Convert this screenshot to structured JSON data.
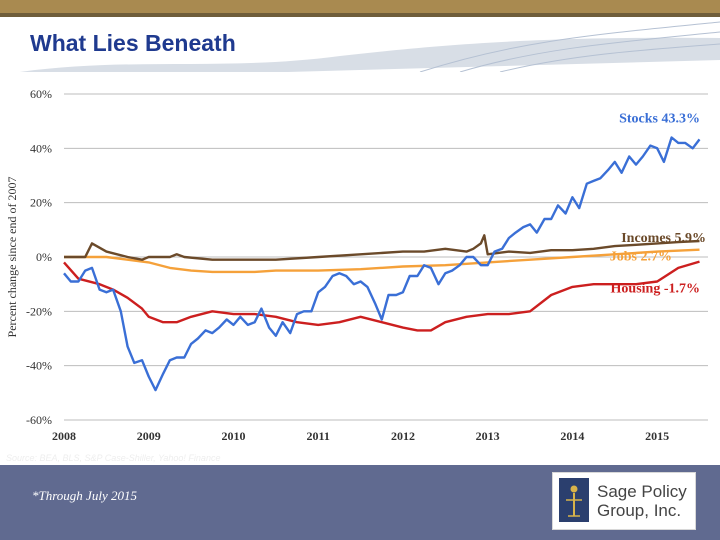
{
  "title": "What Lies Beneath",
  "source": "Source: BEA, BLS, S&P Case-Shiller, Yahoo! Finance",
  "footnote": "*Through July 2015",
  "logo": {
    "line1": "Sage Policy",
    "line2": "Group, Inc."
  },
  "colors": {
    "title": "#1f3a8f",
    "stocks": "#3a6fd6",
    "incomes": "#6b4a2a",
    "jobs": "#f5a13a",
    "housing": "#cc1f1f",
    "band": "#606a90"
  },
  "chart_data": {
    "type": "line",
    "title": "What Lies Beneath",
    "ylabel": "Percent change since end of 2007",
    "xlabel": "",
    "ylim": [
      -60,
      60
    ],
    "yticks": [
      60,
      40,
      20,
      0,
      -20,
      -40,
      -60
    ],
    "ytick_labels": [
      "60%",
      "40%",
      "20%",
      "0%",
      "-20%",
      "-40%",
      "-60%"
    ],
    "xticks": [
      2008,
      2009,
      2010,
      2011,
      2012,
      2013,
      2014,
      2015
    ],
    "xtick_labels": [
      "2008",
      "2009",
      "2010",
      "2011",
      "2012",
      "2013",
      "2014",
      "2015"
    ],
    "xlim": [
      2008,
      2015.6
    ],
    "grid": "horizontal",
    "series": [
      {
        "name": "Stocks",
        "label": "Stocks 43.3%",
        "color": "#3a6fd6",
        "x": [
          2008,
          2008.08,
          2008.17,
          2008.25,
          2008.33,
          2008.42,
          2008.5,
          2008.58,
          2008.67,
          2008.75,
          2008.83,
          2008.92,
          2009,
          2009.08,
          2009.17,
          2009.25,
          2009.33,
          2009.42,
          2009.5,
          2009.58,
          2009.67,
          2009.75,
          2009.83,
          2009.92,
          2010,
          2010.08,
          2010.17,
          2010.25,
          2010.33,
          2010.42,
          2010.5,
          2010.58,
          2010.67,
          2010.75,
          2010.83,
          2010.92,
          2011,
          2011.08,
          2011.17,
          2011.25,
          2011.33,
          2011.42,
          2011.5,
          2011.58,
          2011.67,
          2011.75,
          2011.83,
          2011.92,
          2012,
          2012.08,
          2012.17,
          2012.25,
          2012.33,
          2012.42,
          2012.5,
          2012.58,
          2012.67,
          2012.75,
          2012.83,
          2012.92,
          2013,
          2013.08,
          2013.17,
          2013.25,
          2013.33,
          2013.42,
          2013.5,
          2013.58,
          2013.67,
          2013.75,
          2013.83,
          2013.92,
          2014,
          2014.08,
          2014.17,
          2014.25,
          2014.33,
          2014.42,
          2014.5,
          2014.58,
          2014.67,
          2014.75,
          2014.83,
          2014.92,
          2015,
          2015.08,
          2015.17,
          2015.25,
          2015.33,
          2015.42,
          2015.5
        ],
        "values": [
          -6,
          -9,
          -9,
          -5,
          -4,
          -12,
          -13,
          -12,
          -20,
          -33,
          -39,
          -38,
          -44,
          -49,
          -43,
          -38,
          -37,
          -37,
          -32,
          -30,
          -27,
          -28,
          -26,
          -23,
          -25,
          -22,
          -25,
          -24,
          -19,
          -26,
          -29,
          -24,
          -28,
          -21,
          -20,
          -20,
          -13,
          -11,
          -7,
          -6,
          -7,
          -10,
          -9,
          -11,
          -17,
          -23,
          -14,
          -14,
          -13,
          -7,
          -7,
          -3,
          -4,
          -10,
          -6,
          -5,
          -3,
          0,
          0,
          -3,
          -3,
          2,
          3,
          7,
          9,
          11,
          12,
          9,
          14,
          14,
          19,
          16,
          22,
          18,
          27,
          28,
          29,
          32,
          35,
          31,
          37,
          34,
          37,
          41,
          40,
          35,
          44,
          42,
          42,
          40,
          43.3
        ]
      },
      {
        "name": "Incomes",
        "label": "Incomes 5.9%",
        "color": "#6b4a2a",
        "x": [
          2008,
          2008.25,
          2008.33,
          2008.5,
          2008.75,
          2008.92,
          2009,
          2009.25,
          2009.33,
          2009.42,
          2009.75,
          2010,
          2010.5,
          2011,
          2011.5,
          2012,
          2012.25,
          2012.5,
          2012.75,
          2012.83,
          2012.92,
          2012.96,
          2013,
          2013.25,
          2013.5,
          2013.75,
          2014,
          2014.25,
          2014.5,
          2014.75,
          2015,
          2015.25,
          2015.5
        ],
        "values": [
          0,
          0,
          5,
          2,
          0,
          -1,
          0,
          0,
          1,
          0,
          -1,
          -1,
          -1,
          0,
          1,
          2,
          2,
          3,
          2,
          3,
          5,
          8,
          1,
          2,
          1.5,
          2.5,
          2.5,
          3,
          4,
          4.5,
          5,
          5.5,
          5.9
        ]
      },
      {
        "name": "Jobs",
        "label": "Jobs 2.7%",
        "color": "#f5a13a",
        "x": [
          2008,
          2008.25,
          2008.5,
          2008.75,
          2009,
          2009.25,
          2009.5,
          2009.75,
          2010,
          2010.25,
          2010.5,
          2011,
          2011.5,
          2012,
          2012.5,
          2013,
          2013.5,
          2014,
          2014.5,
          2015,
          2015.5
        ],
        "values": [
          0,
          0,
          0,
          -1,
          -2,
          -4,
          -5,
          -5.5,
          -5.5,
          -5.5,
          -5,
          -5,
          -4.5,
          -3.5,
          -3,
          -2,
          -1,
          0,
          1,
          2,
          2.7
        ]
      },
      {
        "name": "Housing",
        "label": "Housing -1.7%",
        "color": "#cc1f1f",
        "x": [
          2008,
          2008.17,
          2008.42,
          2008.58,
          2008.75,
          2008.92,
          2009,
          2009.17,
          2009.33,
          2009.5,
          2009.75,
          2010,
          2010.25,
          2010.5,
          2010.75,
          2011,
          2011.25,
          2011.5,
          2011.75,
          2012,
          2012.17,
          2012.33,
          2012.5,
          2012.75,
          2013,
          2013.25,
          2013.5,
          2013.75,
          2014,
          2014.25,
          2014.5,
          2014.75,
          2015,
          2015.25,
          2015.5
        ],
        "values": [
          -2,
          -8,
          -10,
          -12,
          -15,
          -19,
          -22,
          -24,
          -24,
          -22,
          -20,
          -21,
          -21,
          -22,
          -24,
          -25,
          -24,
          -22,
          -24,
          -26,
          -27,
          -27,
          -24,
          -22,
          -21,
          -21,
          -20,
          -14,
          -11,
          -10,
          -10,
          -10,
          -9,
          -4,
          -1.7
        ]
      }
    ]
  }
}
